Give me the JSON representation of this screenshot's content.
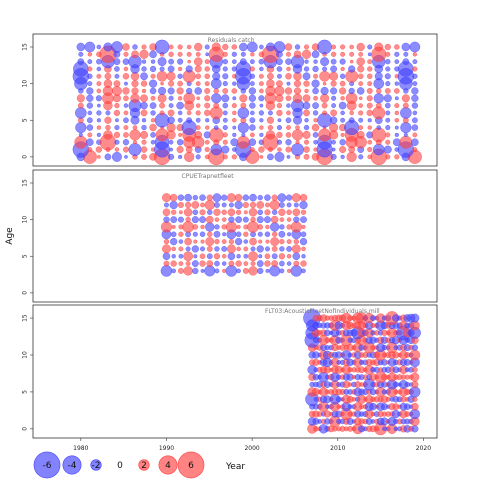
{
  "chart_data": {
    "type": "scatter",
    "subtype": "bubble-residuals",
    "xlabel": "Year",
    "ylabel": "Age",
    "xlim": [
      1975,
      2021
    ],
    "x_ticks": [
      1980,
      1990,
      2000,
      2010,
      2020
    ],
    "ylim": [
      -0.7,
      16.5
    ],
    "y_ticks": [
      0,
      5,
      10,
      15
    ],
    "colors": {
      "positive": "#ff4040",
      "negative": "#4040ff"
    },
    "legend": {
      "position": "bottom-left",
      "values": [
        -6,
        -4,
        -2,
        0,
        2,
        4,
        6
      ],
      "labels": [
        "-6",
        "-4",
        "-2",
        "0",
        "2",
        "4",
        "6"
      ]
    },
    "panels": [
      {
        "title": "Residuals catch",
        "year_range": [
          1980,
          2019
        ],
        "age_range": [
          0,
          15
        ],
        "residuals": [
          [
            -1.1,
            -4.3,
            0.1,
            -0.7,
            2.6,
            -0.1,
            0.4,
            -0.9,
            2.6,
            2.9,
            1,
            -0.4,
            1.5,
            0.6,
            0.7,
            2.9,
            -0.6,
            1
          ],
          [
            -2.9,
            -0.5,
            1.8,
            0.3,
            -0.4,
            1.5,
            -2.1,
            -1.2,
            0.4,
            -2.8,
            0.1,
            2.2,
            0.7,
            1.3,
            1,
            -1.8,
            1.8,
            -0.6
          ],
          [
            2.1,
            1.6,
            -1.2,
            2.9,
            0.6,
            -1.7,
            0.1,
            -0.6,
            -0.6,
            -2.5,
            0.4,
            -1.8,
            1.9,
            -3.6,
            0.7,
            0.5,
            -0.6,
            -2.7
          ],
          [
            -0.1,
            -0.5,
            -0.4,
            1.3,
            -1.1,
            1.3,
            1.7,
            -1.8,
            -1.3,
            2.1,
            -2.3,
            0.3,
            2.3,
            -1.7,
            -2.2,
            2.5,
            -0.6,
            -0.4
          ],
          [
            -1.7,
            1.2,
            0.5,
            0.4,
            0.6,
            0.8,
            0.2,
            0.7,
            2.5,
            0,
            -2.2,
            2.3,
            -2.6,
            -0.5,
            0.5,
            -0.2,
            0.6,
            -0.2
          ],
          [
            0.5,
            0.9,
            -0.4,
            0.8,
            0.1,
            -1.3,
            -1.2,
            0.3,
            0.5,
            -2.5,
            1.6,
            -0.8,
            -0.5,
            0.5,
            -0.4,
            -0.9,
            0.5,
            0.6
          ],
          [
            -1.8,
            0.4,
            -1,
            -0.3,
            -1.1,
            0.7,
            -1.5,
            -1.3,
            -1.1,
            0.3,
            -1.3,
            -0.6,
            0.2,
            -0.6,
            1.8,
            2.1,
            0.5,
            0.5
          ],
          [
            0.5,
            1.1,
            -0.1,
            1.3,
            -0.7,
            -0.6,
            -2.1,
            1.6,
            -2,
            0.5,
            0.5,
            -2.6,
            1.4,
            -0.4,
            1.5,
            0.5,
            0.8,
            0.9
          ],
          [
            1,
            1.5,
            -1.6,
            1.8,
            -1.8,
            1.3,
            1.3,
            -1.7,
            0.8,
            1.2,
            0.6,
            0.5,
            1.8,
            0,
            1.6,
            -1.5,
            1.8,
            -0.2
          ],
          [
            -0.4,
            1.5,
            0.7,
            1.5,
            -2.6,
            2.4,
            0.8,
            -0.3,
            -1.9,
            -1,
            1.4,
            2.3,
            -0.6,
            1.6,
            1.5,
            0.4,
            -0.9,
            1.3
          ],
          [
            -2.2,
            0.5,
            0.8,
            1.1,
            -1.3,
            -0.2,
            0.8,
            -1.1,
            -2.9,
            0,
            -1,
            1.3,
            -0.3,
            -0.5,
            0.9,
            -1.6,
            0.6,
            -0.5
          ],
          [
            -2.9,
            0.7,
            0.8,
            0.7,
            0.5,
            1.8,
            1.1,
            1.7,
            0.9,
            1.6,
            -2.2,
            -1.1,
            2.1,
            -0.8,
            1.2,
            -1,
            1,
            0.5
          ],
          [
            -2.7,
            -0.6,
            -0.6,
            0.9,
            0.8,
            0.6,
            -1.3,
            0.7,
            -1.7,
            -0.3,
            1.3,
            0.4,
            -0.8,
            -1.4,
            1.1,
            -1.1,
            0.6,
            -1
          ],
          [
            -0.7,
            0.5,
            -1.3,
            -2.2,
            1.3,
            -1.9,
            -2.2,
            0.3,
            -0.5,
            -1.2,
            0.9,
            -1.6,
            0,
            -2,
            0.9,
            -2.2,
            0.7,
            -0.7
          ],
          [
            -0.3,
            -0.3,
            1.2,
            3.1,
            1.3,
            0.9,
            0.9,
            -2.3,
            -2.6,
            0.2,
            -0.7,
            0.9,
            0.3,
            -0.5,
            -0.1,
            2.6,
            -0.6,
            -1
          ],
          [
            -1.1,
            2.9,
            -0.6,
            -1.2,
            3.3,
            2.5,
            -0.4,
            -0.6,
            2.5,
            -2.5,
            -0.5,
            1,
            0.2,
            -1.9,
            -0.9,
            1.2,
            -1.1,
            1.2
          ]
        ],
        "year_values": [
          1980,
          1982,
          1984,
          1987,
          1989,
          1991,
          1993,
          1996,
          1998,
          2000,
          2003,
          2005,
          2007,
          2009,
          2012,
          2014,
          2016,
          2019
        ]
      },
      {
        "title": "CPUETrapnetfleet",
        "year_range": [
          1990,
          2006
        ],
        "age_range": [
          3,
          13
        ],
        "residuals": [
          [
            -1.8,
            0.4,
            1.5,
            1.3,
            1.1,
            -0.2,
            -1.7,
            0.5,
            0.4
          ],
          [
            0.5,
            -1.1,
            0.7,
            0.3,
            1.3,
            1.8,
            0.7,
            0.8,
            -0.6
          ],
          [
            -0.9,
            0.3,
            -0.7,
            1.4,
            0.2,
            1.3,
            -0.5,
            -1.1,
            0.6
          ],
          [
            1.2,
            -0.4,
            0.8,
            -0.3,
            1.5,
            -0.9,
            0.5,
            0.7,
            -1.4
          ],
          [
            0.4,
            1.5,
            -0.6,
            0.9,
            -0.2,
            0.3,
            1.2,
            -0.7,
            0.8
          ],
          [
            -1.4,
            0.8,
            1.1,
            -0.5,
            0.6,
            -1.2,
            0.4,
            1.3,
            -0.3
          ],
          [
            1.7,
            -0.2,
            0.9,
            1.8,
            -0.8,
            0.5,
            -1.3,
            0.7,
            1.1
          ],
          [
            -0.6,
            1.3,
            -1.5,
            0.4,
            1.4,
            -2.1,
            0.9,
            -0.4,
            0.6
          ],
          [
            0.9,
            -0.7,
            0.2,
            1.1,
            0.8,
            1.6,
            -0.4,
            -1.5,
            1.2
          ],
          [
            -0.3,
            1.9,
            1.6,
            0.6,
            -1.7,
            0.8,
            1.5,
            0.9,
            -0.8
          ],
          [
            1.2,
            -1.6,
            -1.8,
            -0.9,
            0.7,
            -1.9,
            0.6,
            2.1,
            -1.7
          ]
        ],
        "year_values": [
          1990,
          1992,
          1994,
          1996,
          1998,
          2000,
          2002,
          2004,
          2006
        ]
      },
      {
        "title": "FLT03:AcousticFleetNofIndividuals,mill",
        "year_range": [
          2007,
          2019
        ],
        "age_range": [
          0,
          15
        ],
        "residuals": [
          [
            1.4,
            -0.8,
            0.6,
            -1.3,
            0.9,
            2.1,
            0.4,
            -0.6,
            1.5,
            0.3,
            -0.9,
            0.8,
            1.6
          ],
          [
            -1.1,
            1.3,
            -0.7,
            0.4,
            1.1,
            -0.9,
            1.8,
            0.6,
            -1.2,
            0.7,
            1.4,
            -0.5,
            0.9
          ],
          [
            0.7,
            -1.5,
            1.2,
            -0.3,
            -1.4,
            0.6,
            -0.7,
            1.3,
            0.4,
            1.9,
            -0.6,
            1.1,
            -0.8
          ],
          [
            -0.5,
            0.9,
            -1.2,
            1.6,
            0.3,
            -1.1,
            1.4,
            -0.4,
            0.8,
            -1.3,
            0.5,
            -0.9,
            1.2
          ],
          [
            -2.3,
            0.4,
            1.1,
            -0.8,
            1.7,
            0.5,
            -1.6,
            0.9,
            -0.3,
            1.2,
            -1.4,
            0.6,
            -0.4
          ],
          [
            1.3,
            -1.7,
            0.5,
            1.2,
            -0.6,
            1.4,
            0.7,
            -1.2,
            1.6,
            -0.5,
            0.8,
            1.3,
            -1.1
          ],
          [
            -0.4,
            0.8,
            -1.9,
            0.6,
            1.3,
            -0.7,
            1.1,
            0.5,
            -1.5,
            0.9,
            -0.3,
            -1.2,
            0.7
          ],
          [
            0.9,
            1.2,
            -0.5,
            -1.6,
            0.4,
            1.8,
            -1.3,
            0.7,
            1.2,
            -0.8,
            1.5,
            0.4,
            -0.6
          ],
          [
            -1.3,
            0.5,
            1.4,
            0.8,
            -1.5,
            0.3,
            0.9,
            -1.8,
            0.6,
            1.3,
            -0.7,
            1.1,
            0.5
          ],
          [
            0.6,
            -1.4,
            0.7,
            -0.9,
            2.4,
            -0.5,
            1.2,
            0.4,
            -1.1,
            0.8,
            1.6,
            -0.8,
            1.3
          ],
          [
            -0.8,
            1.6,
            -0.4,
            1.3,
            2.1,
            1.7,
            -0.6,
            1.5,
            0.9,
            -1.4,
            0.5,
            1.2,
            -0.9
          ],
          [
            1.1,
            -0.6,
            1.8,
            -0.7,
            0.6,
            -1.2,
            0.8,
            -0.5,
            1.7,
            0.4,
            -1.5,
            0.7,
            1.4
          ],
          [
            -2.6,
            0.9,
            -0.8,
            1.5,
            -0.9,
            0.8,
            1.5,
            1.3,
            -0.6,
            1.9,
            0.7,
            -1.3,
            0.6
          ],
          [
            -2.2,
            -1.9,
            1.3,
            0.7,
            1.2,
            -0.4,
            -1.1,
            0.8,
            1.4,
            -0.7,
            1.2,
            -2.5,
            -2.1
          ],
          [
            -1.9,
            1.4,
            -1.1,
            -0.6,
            1.1,
            -1.5,
            1.6,
            1.9,
            -0.8,
            1.3,
            -1.6,
            1.2,
            0.9
          ],
          [
            -3.2,
            -1.2,
            1.5,
            0.9,
            -0.7,
            1.3,
            0.6,
            -1.4,
            2.3,
            1.6,
            -0.9,
            0.8,
            1.7
          ]
        ],
        "year_values": [
          2007,
          2008,
          2009,
          2010,
          2011,
          2012,
          2013,
          2014,
          2015,
          2016,
          2017,
          2018,
          2019
        ]
      }
    ]
  }
}
